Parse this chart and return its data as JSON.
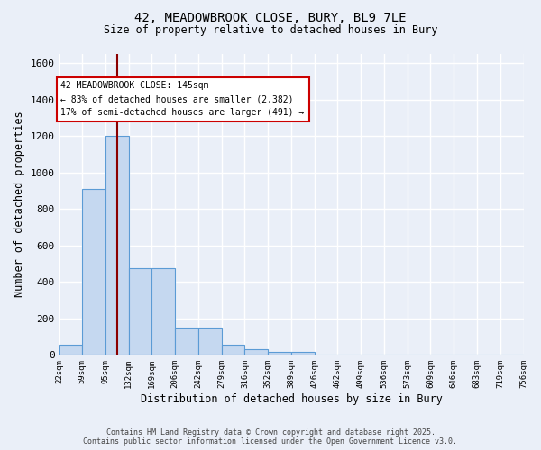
{
  "title_line1": "42, MEADOWBROOK CLOSE, BURY, BL9 7LE",
  "title_line2": "Size of property relative to detached houses in Bury",
  "xlabel": "Distribution of detached houses by size in Bury",
  "ylabel": "Number of detached properties",
  "bin_labels": [
    "22sqm",
    "59sqm",
    "95sqm",
    "132sqm",
    "169sqm",
    "206sqm",
    "242sqm",
    "279sqm",
    "316sqm",
    "352sqm",
    "389sqm",
    "426sqm",
    "462sqm",
    "499sqm",
    "536sqm",
    "573sqm",
    "609sqm",
    "646sqm",
    "683sqm",
    "719sqm",
    "756sqm"
  ],
  "bar_heights": [
    55,
    910,
    1200,
    475,
    475,
    150,
    150,
    55,
    30,
    15,
    15,
    0,
    0,
    0,
    0,
    0,
    0,
    0,
    0,
    0
  ],
  "bar_color": "#c5d8f0",
  "bar_edgecolor": "#5b9bd5",
  "background_color": "#eaeff8",
  "grid_color": "#d8e0f0",
  "ylim": [
    0,
    1650
  ],
  "yticks": [
    0,
    200,
    400,
    600,
    800,
    1000,
    1200,
    1400,
    1600
  ],
  "property_line_x": 2.5,
  "property_line_color": "#8b0000",
  "annotation_text": "42 MEADOWBROOK CLOSE: 145sqm\n← 83% of detached houses are smaller (2,382)\n17% of semi-detached houses are larger (491) →",
  "footer_line1": "Contains HM Land Registry data © Crown copyright and database right 2025.",
  "footer_line2": "Contains public sector information licensed under the Open Government Licence v3.0."
}
